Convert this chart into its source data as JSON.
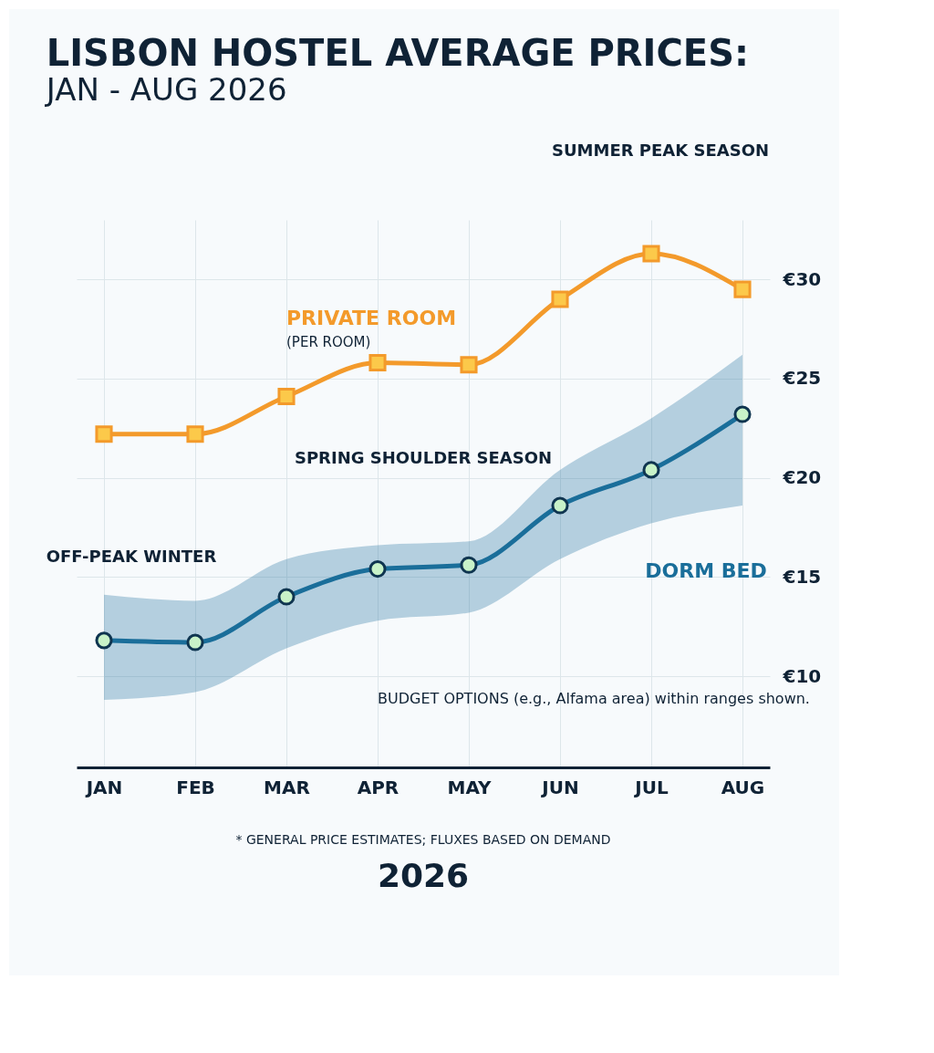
{
  "chart_data": {
    "type": "line",
    "title": "LISBON HOSTEL AVERAGE PRICES:",
    "subtitle": "JAN - AUG 2026",
    "categories": [
      "JAN",
      "FEB",
      "MAR",
      "APR",
      "MAY",
      "JUN",
      "JUL",
      "AUG"
    ],
    "series": [
      {
        "name": "PRIVATE ROOM",
        "color": "#f39a2b",
        "marker": "square",
        "values": [
          22.2,
          22.2,
          24.1,
          25.8,
          25.7,
          29.0,
          31.3,
          29.5
        ]
      },
      {
        "name": "DORM BED",
        "color": "#1a6e9a",
        "marker": "circle",
        "values": [
          11.8,
          11.7,
          14.0,
          15.4,
          15.6,
          18.6,
          20.4,
          23.2
        ],
        "lower": [
          8.8,
          9.2,
          11.4,
          12.8,
          13.2,
          15.9,
          17.7,
          18.6
        ],
        "upper": [
          14.1,
          13.8,
          15.9,
          16.6,
          16.8,
          20.4,
          23.0,
          26.2
        ]
      }
    ],
    "ylim": [
      5.4,
      33
    ],
    "yticks": [
      {
        "value": 10,
        "label": "€10"
      },
      {
        "value": 15,
        "label": "€15"
      },
      {
        "value": 20,
        "label": "€20"
      },
      {
        "value": 25,
        "label": "€25"
      },
      {
        "value": 30,
        "label": "€30"
      }
    ],
    "grid": true,
    "line_style": "solid",
    "annotations": [
      "(PER ROOM)",
      "OFF-PEAK WINTER",
      "SPRING SHOULDER SEASON",
      "SUMMER PEAK SEASON",
      "BUDGET OPTIONS (e.g., Alfama area) within ranges shown.",
      "* GENERAL PRICE ESTIMATES; FLUXES BASED ON DEMAND",
      "2026"
    ]
  }
}
